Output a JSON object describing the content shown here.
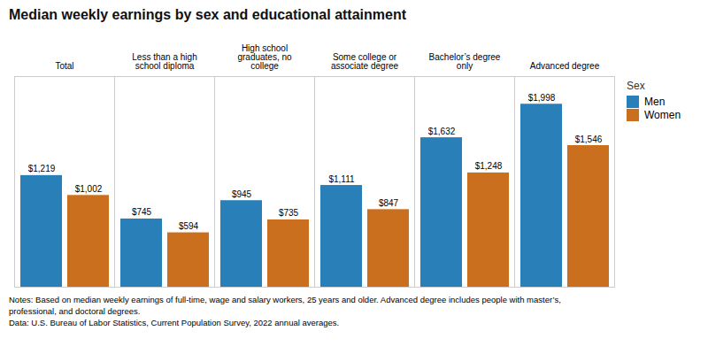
{
  "chart_data": {
    "type": "bar",
    "title": "Median weekly earnings by sex and educational attainment",
    "categories": [
      "Total",
      "Less than a high\nschool diploma",
      "High school\ngraduates, no\ncollege",
      "Some college or\nassociate degree",
      "Bachelor’s degree\nonly",
      "Advanced degree"
    ],
    "series": [
      {
        "name": "Men",
        "color": "#2980B9",
        "values": [
          1219,
          745,
          945,
          1111,
          1632,
          1998
        ],
        "value_labels": [
          "$1,219",
          "$745",
          "$945",
          "$1,111",
          "$1,632",
          "$1,998"
        ]
      },
      {
        "name": "Women",
        "color": "#CA6F1E",
        "values": [
          1002,
          594,
          735,
          847,
          1248,
          1546
        ],
        "value_labels": [
          "$1,002",
          "$594",
          "$735",
          "$847",
          "$1,248",
          "$1,546"
        ]
      }
    ],
    "ylim": [
      0,
      2300
    ],
    "grid": false,
    "tick_labels": "x",
    "data_labels": true,
    "legend": "right",
    "legend_title": "Sex",
    "note": "Notes: Based on median weekly earnings of full-time, wage and salary workers, 25 years and older. Advanced degree includes people with master’s,\nprofessional, and doctoral degrees.\nData: U.S. Bureau of Labor Statistics, Current Population Survey, 2022 annual averages."
  }
}
